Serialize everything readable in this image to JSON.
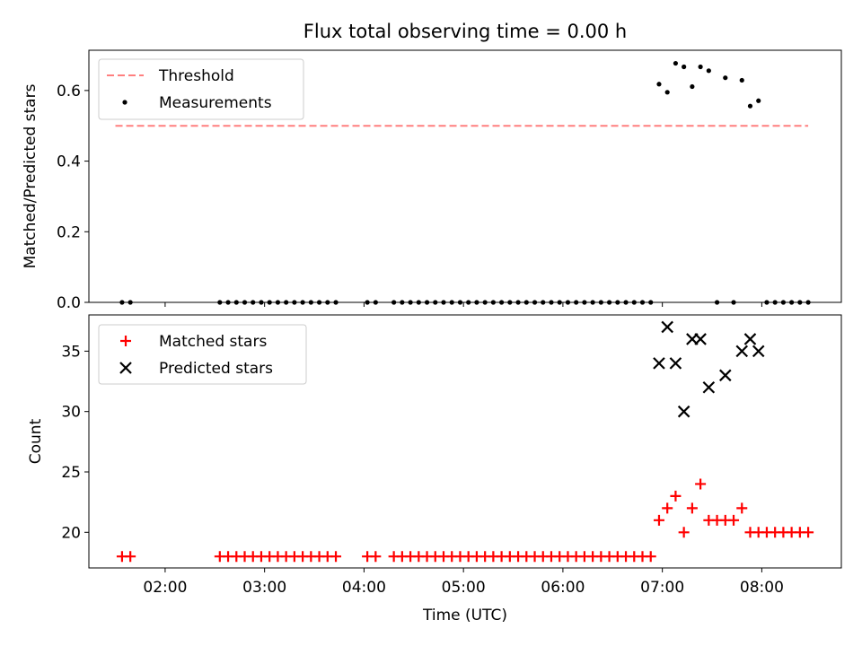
{
  "title": "Flux total observing time = 0.00 h",
  "xlabel": "Time (UTC)",
  "xticks": [
    {
      "t": 2,
      "label": "02:00"
    },
    {
      "t": 3,
      "label": "03:00"
    },
    {
      "t": 4,
      "label": "04:00"
    },
    {
      "t": 5,
      "label": "05:00"
    },
    {
      "t": 6,
      "label": "06:00"
    },
    {
      "t": 7,
      "label": "07:00"
    },
    {
      "t": 8,
      "label": "08:00"
    }
  ],
  "chart_data": [
    {
      "type": "scatter",
      "ylabel": "Matched/Predicted stars",
      "xlim": [
        1.2333,
        8.8
      ],
      "ylim": [
        0,
        0.714
      ],
      "yticks": [
        {
          "v": 0,
          "label": "0.0"
        },
        {
          "v": 0.2,
          "label": "0.2"
        },
        {
          "v": 0.4,
          "label": "0.4"
        },
        {
          "v": 0.6,
          "label": "0.6"
        }
      ],
      "grid": false,
      "legend": "top-left",
      "threshold": {
        "name": "Threshold",
        "value": 0.5,
        "x": [
          1.5,
          8.4667
        ],
        "color": "#ff7f7f"
      },
      "series": [
        {
          "name": "Measurements",
          "color": "#000000",
          "marker": "dot",
          "x": [
            1.5667,
            1.65,
            2.55,
            2.6333,
            2.7167,
            2.8,
            2.8833,
            2.9667,
            3.05,
            3.1333,
            3.2167,
            3.3,
            3.3833,
            3.4667,
            3.55,
            3.6333,
            3.7167,
            4.0333,
            4.1167,
            4.3,
            4.3833,
            4.4667,
            4.55,
            4.6333,
            4.7167,
            4.8,
            4.8833,
            4.9667,
            5.05,
            5.1333,
            5.2167,
            5.3,
            5.3833,
            5.4667,
            5.55,
            5.6333,
            5.7167,
            5.8,
            5.8833,
            5.9667,
            6.05,
            6.1333,
            6.2167,
            6.3,
            6.3833,
            6.4667,
            6.55,
            6.6333,
            6.7167,
            6.8,
            6.8833,
            6.9667,
            7.05,
            7.1333,
            7.2167,
            7.3,
            7.3833,
            7.4667,
            7.55,
            7.6333,
            7.7167,
            7.8,
            7.8833,
            7.9667,
            8.05,
            8.1333,
            8.2167,
            8.3,
            8.3833,
            8.4667
          ],
          "y": [
            0,
            0,
            0,
            0,
            0,
            0,
            0,
            0,
            0,
            0,
            0,
            0,
            0,
            0,
            0,
            0,
            0,
            0,
            0,
            0,
            0,
            0,
            0,
            0,
            0,
            0,
            0,
            0,
            0,
            0,
            0,
            0,
            0,
            0,
            0,
            0,
            0,
            0,
            0,
            0,
            0,
            0,
            0,
            0,
            0,
            0,
            0,
            0,
            0,
            0,
            0,
            0.618,
            0.595,
            0.677,
            0.667,
            0.611,
            0.667,
            0.656,
            0,
            0.636,
            0,
            0.629,
            0.556,
            0.571,
            0,
            0,
            0,
            0,
            0,
            0
          ]
        }
      ]
    },
    {
      "type": "scatter",
      "ylabel": "Count",
      "xlabel": "Time (UTC)",
      "xlim": [
        1.2333,
        8.8
      ],
      "ylim": [
        17.05,
        38.0
      ],
      "yticks": [
        {
          "v": 20,
          "label": "20"
        },
        {
          "v": 25,
          "label": "25"
        },
        {
          "v": 30,
          "label": "30"
        },
        {
          "v": 35,
          "label": "35"
        }
      ],
      "grid": false,
      "legend": "top-left",
      "series": [
        {
          "name": "Matched stars",
          "color": "#ff0000",
          "marker": "plus",
          "x": [
            1.5667,
            1.65,
            2.55,
            2.6333,
            2.7167,
            2.8,
            2.8833,
            2.9667,
            3.05,
            3.1333,
            3.2167,
            3.3,
            3.3833,
            3.4667,
            3.55,
            3.6333,
            3.7167,
            4.0333,
            4.1167,
            4.3,
            4.3833,
            4.4667,
            4.55,
            4.6333,
            4.7167,
            4.8,
            4.8833,
            4.9667,
            5.05,
            5.1333,
            5.2167,
            5.3,
            5.3833,
            5.4667,
            5.55,
            5.6333,
            5.7167,
            5.8,
            5.8833,
            5.9667,
            6.05,
            6.1333,
            6.2167,
            6.3,
            6.3833,
            6.4667,
            6.55,
            6.6333,
            6.7167,
            6.8,
            6.8833,
            6.9667,
            7.05,
            7.1333,
            7.2167,
            7.3,
            7.3833,
            7.4667,
            7.55,
            7.6333,
            7.7167,
            7.8,
            7.8833,
            7.9667,
            8.05,
            8.1333,
            8.2167,
            8.3,
            8.3833,
            8.4667
          ],
          "y": [
            18,
            18,
            18,
            18,
            18,
            18,
            18,
            18,
            18,
            18,
            18,
            18,
            18,
            18,
            18,
            18,
            18,
            18,
            18,
            18,
            18,
            18,
            18,
            18,
            18,
            18,
            18,
            18,
            18,
            18,
            18,
            18,
            18,
            18,
            18,
            18,
            18,
            18,
            18,
            18,
            18,
            18,
            18,
            18,
            18,
            18,
            18,
            18,
            18,
            18,
            18,
            21,
            22,
            23,
            20,
            22,
            24,
            21,
            21,
            21,
            21,
            22,
            20,
            20,
            20,
            20,
            20,
            20,
            20,
            20
          ]
        },
        {
          "name": "Predicted stars",
          "color": "#000000",
          "marker": "x",
          "x": [
            6.9667,
            7.05,
            7.1333,
            7.2167,
            7.3,
            7.3833,
            7.4667,
            7.6333,
            7.8,
            7.8833,
            7.9667
          ],
          "y": [
            34,
            37,
            34,
            30,
            36,
            36,
            32,
            33,
            35,
            36,
            35
          ]
        }
      ]
    }
  ]
}
